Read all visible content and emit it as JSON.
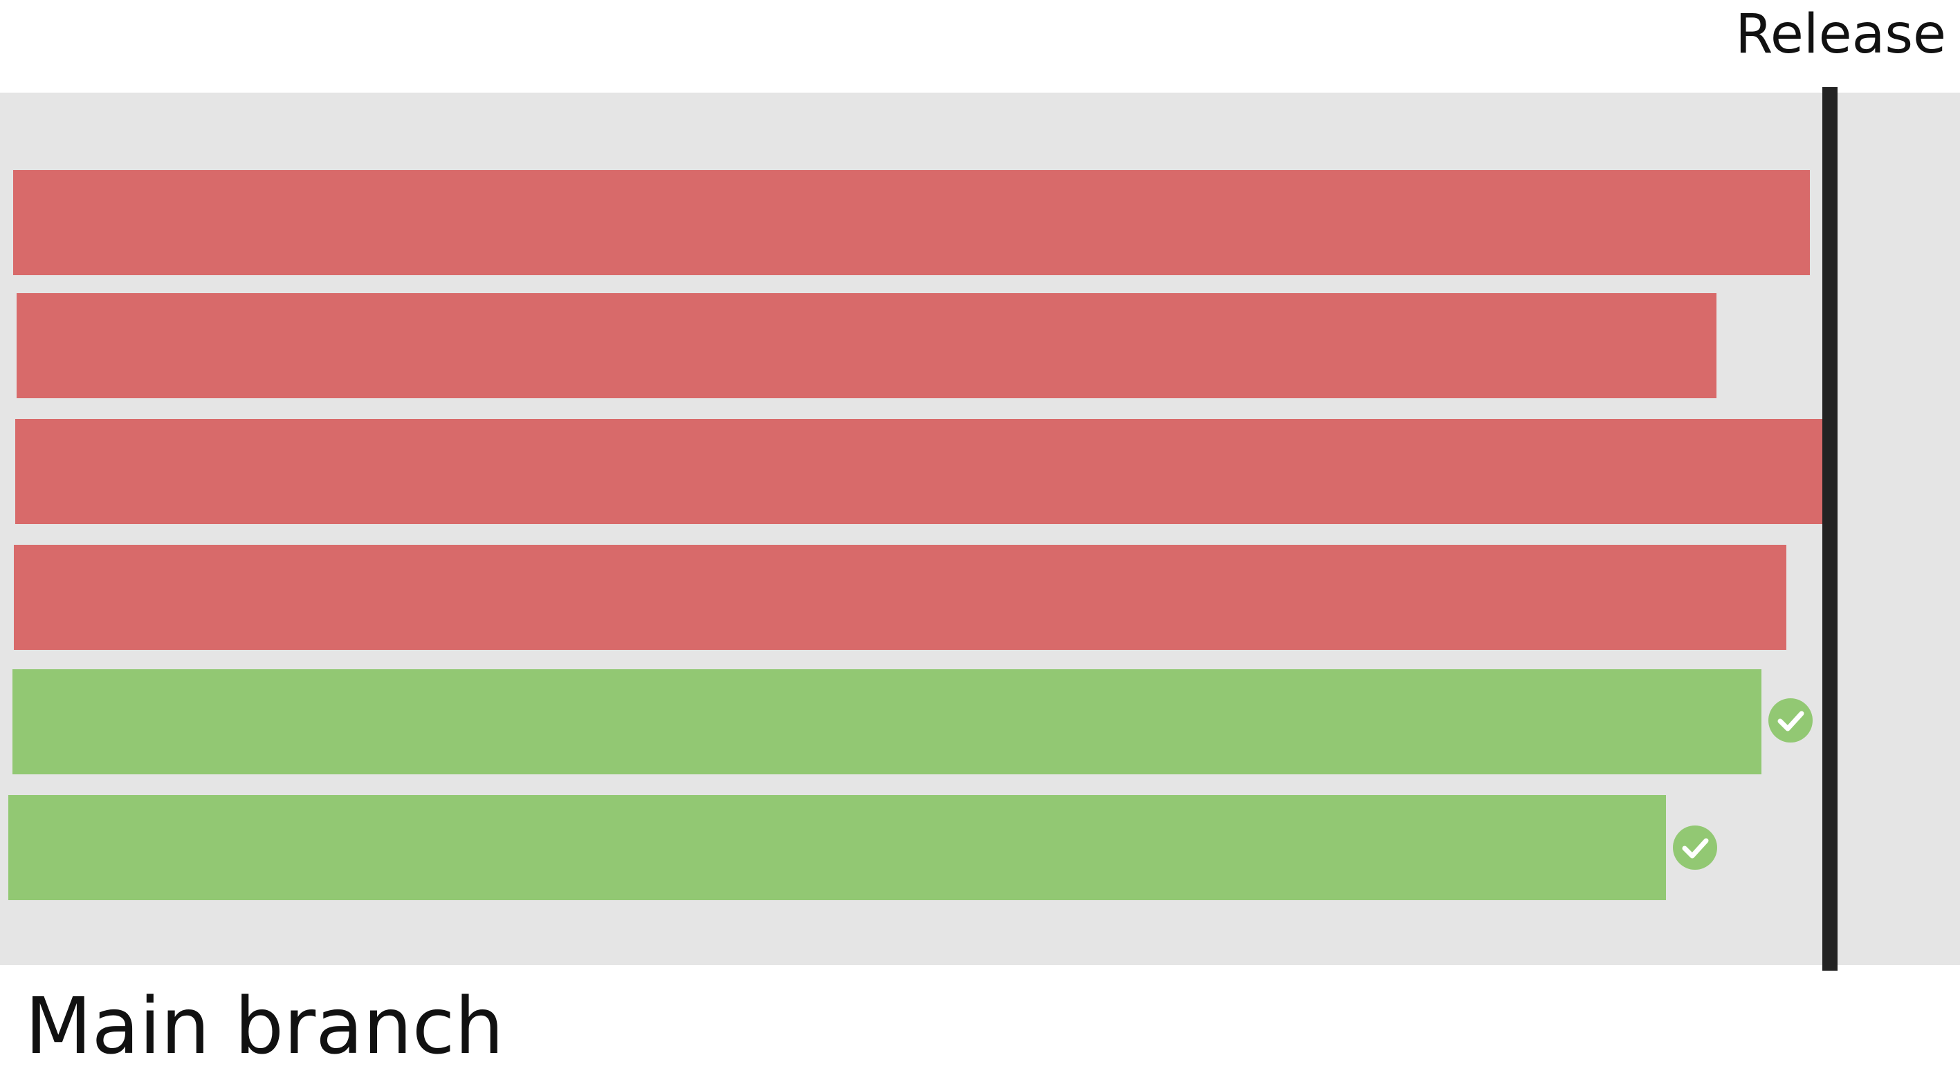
{
  "release": {
    "label": "Release"
  },
  "branch": {
    "label": "Main branch"
  },
  "colors": {
    "lane_background": "#e5e5e5",
    "failing": "#d86a6a",
    "passing": "#92c873",
    "release_line": "#232323"
  },
  "icons": {
    "passing_marker": "check-circle-icon"
  },
  "builds": [
    {
      "status": "failing"
    },
    {
      "status": "failing"
    },
    {
      "status": "failing"
    },
    {
      "status": "failing"
    },
    {
      "status": "passing"
    },
    {
      "status": "passing"
    }
  ]
}
